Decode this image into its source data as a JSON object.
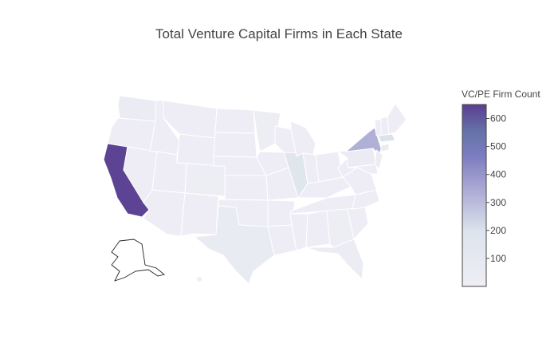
{
  "title": "Total Venture Capital Firms in Each State",
  "colorbar": {
    "title": "VC/PE Firm Count",
    "ticks": [
      100,
      200,
      300,
      400,
      500,
      600
    ],
    "range": [
      0,
      650
    ],
    "colorscale": [
      "#efeef5",
      "#dce4ec",
      "#a7a5d2",
      "#7b7cc0",
      "#6573a8",
      "#5b3d91"
    ]
  },
  "chart_data": {
    "type": "choropleth",
    "title": "Total Venture Capital Firms in Each State",
    "colorbar_title": "VC/PE Firm Count",
    "values": {
      "CA": 640,
      "NY": 330,
      "MA": 200,
      "IL": 150,
      "TX": 60,
      "WA": 50,
      "CT": 40,
      "PA": 40,
      "NJ": 30,
      "FL": 30,
      "CO": 20,
      "GA": 20,
      "MN": 20,
      "OTHER": 10
    }
  }
}
